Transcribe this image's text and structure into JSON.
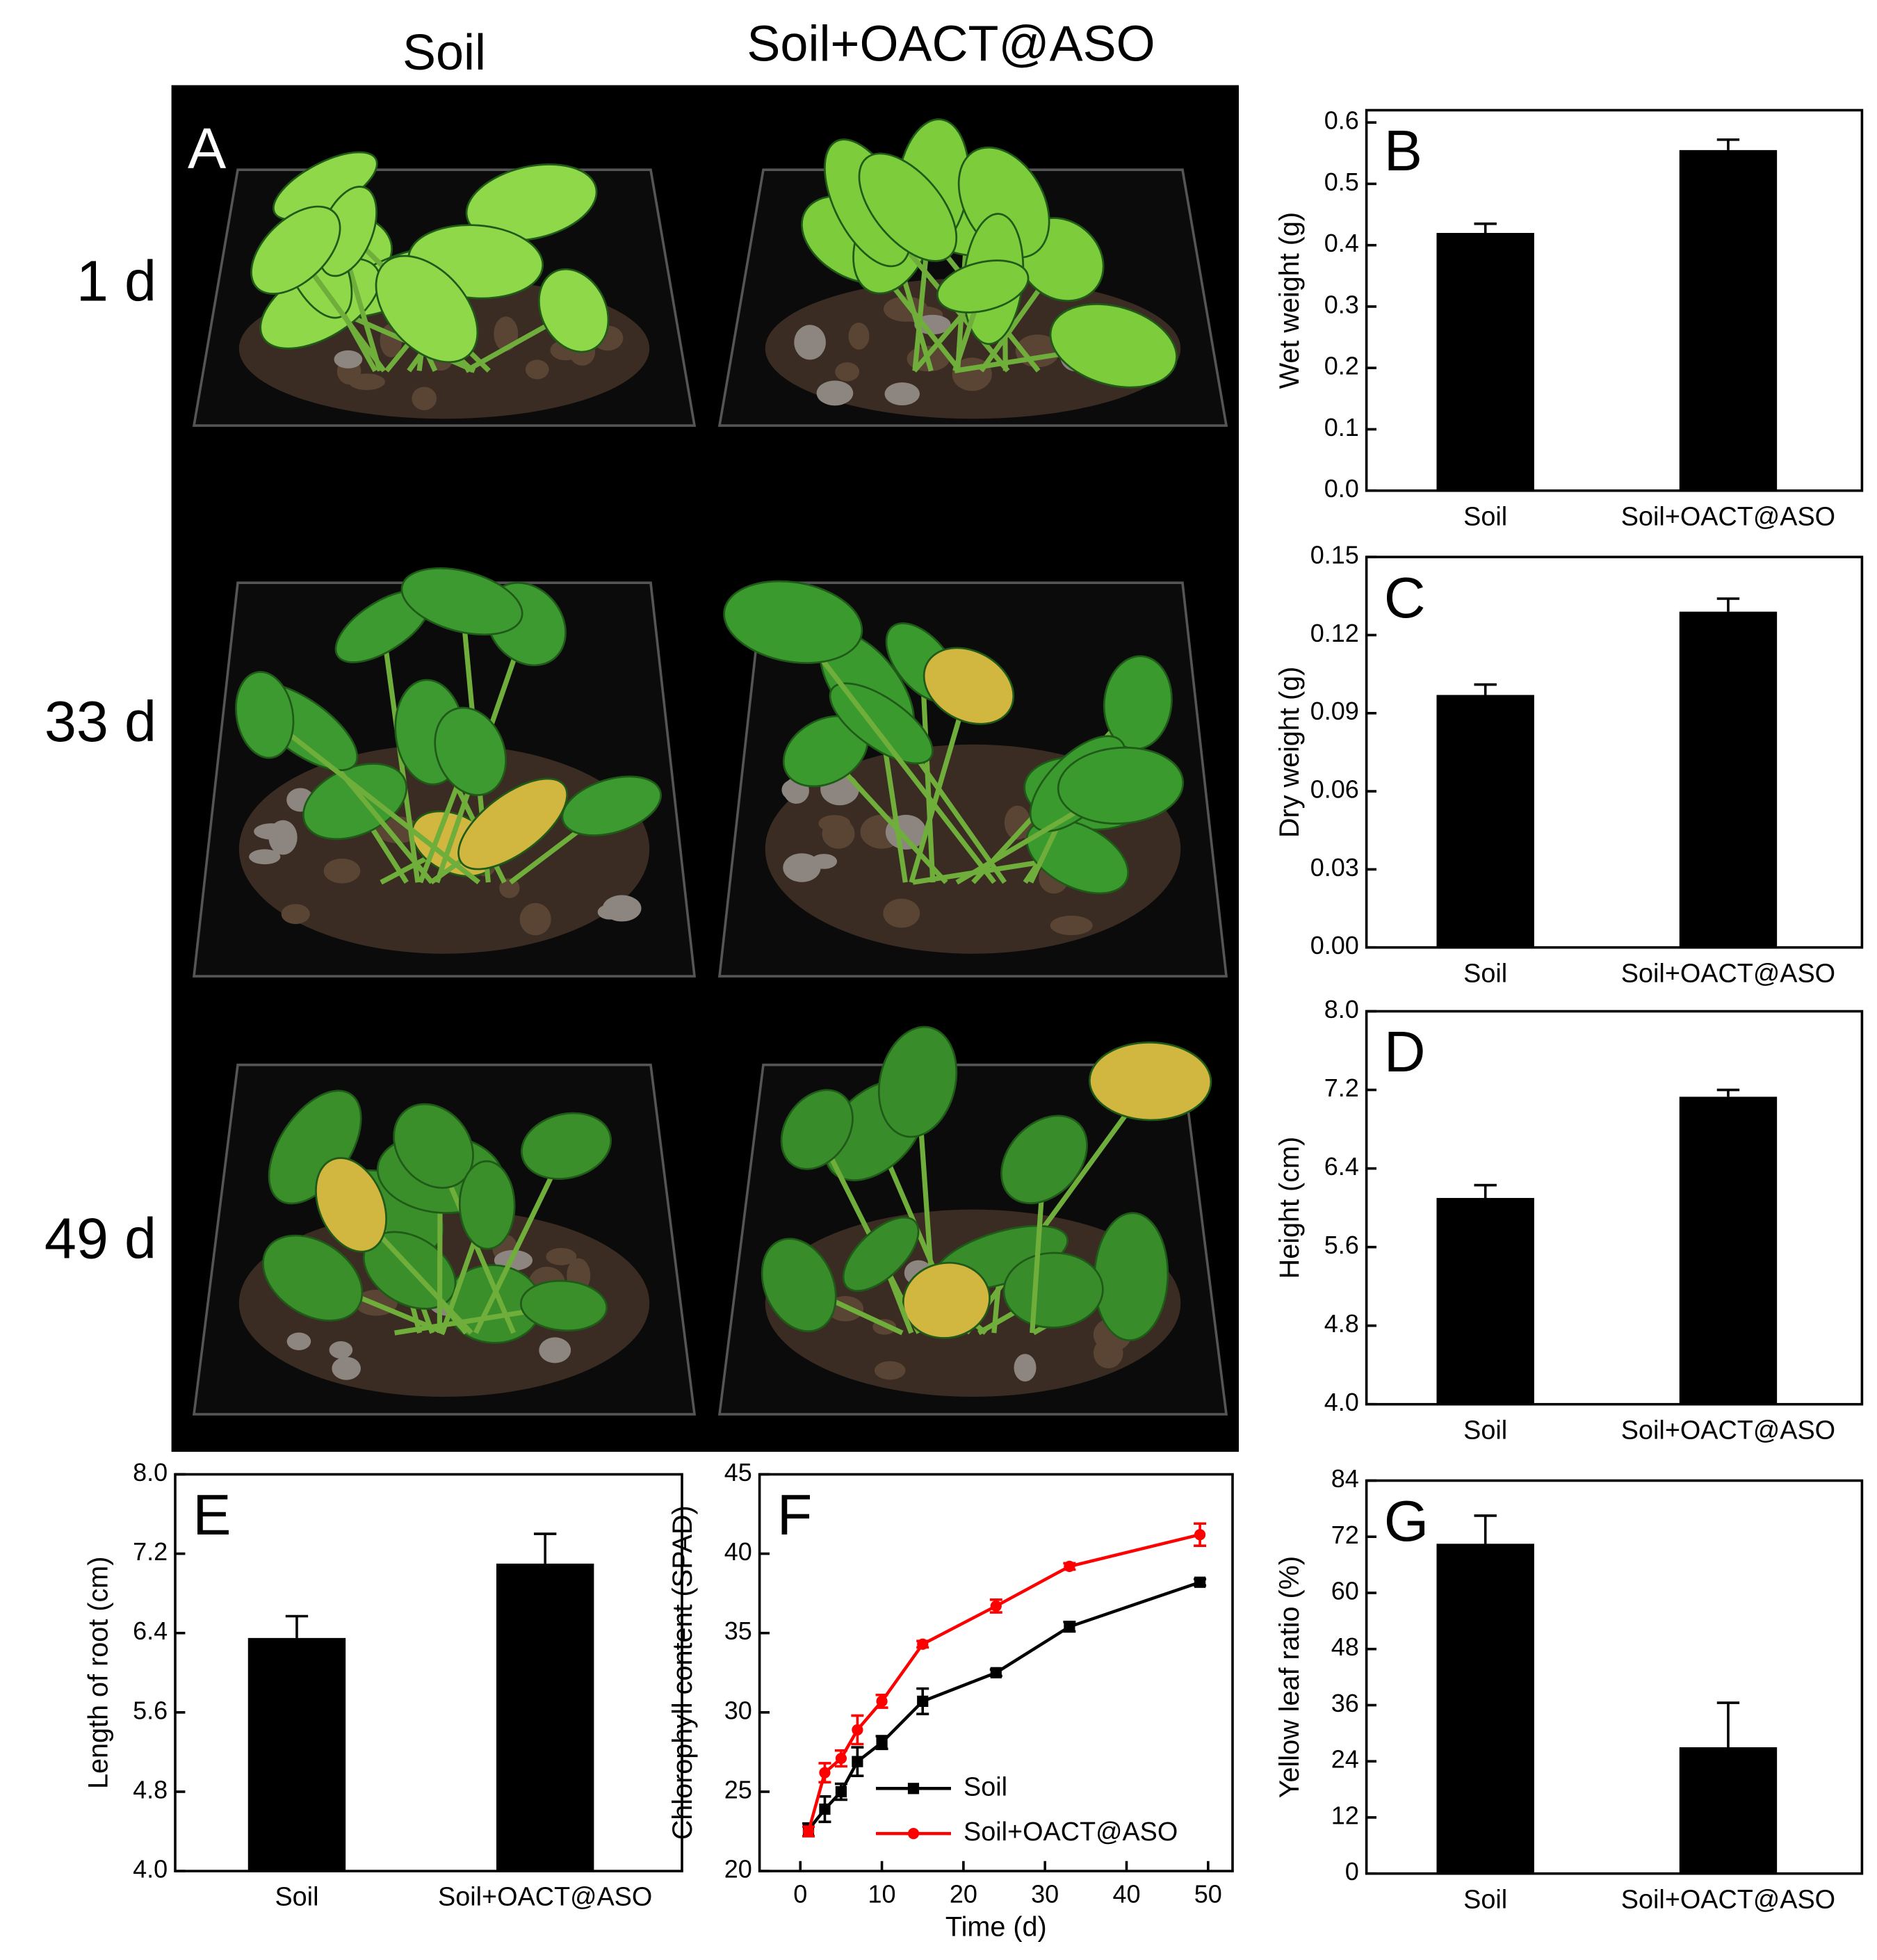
{
  "photo_panel": {
    "label": "A",
    "columns": [
      "Soil",
      "Soil+OACT@ASO"
    ],
    "rows": [
      "1 d",
      "33 d",
      "49 d"
    ]
  },
  "chart_data": [
    {
      "type": "bar",
      "panel_label": "B",
      "y_label": "Wet weight (g)",
      "categories": [
        "Soil",
        "Soil+OACT@ASO"
      ],
      "values": [
        0.42,
        0.555
      ],
      "errors": [
        0.015,
        0.017
      ],
      "color": "#000000",
      "ylim": [
        0,
        0.62
      ],
      "yticks": [
        {
          "value": 0,
          "label": "0.0"
        },
        0.1,
        0.2,
        0.3,
        0.4,
        0.5,
        0.6
      ]
    },
    {
      "type": "bar",
      "panel_label": "C",
      "y_label": "Dry weight (g)",
      "categories": [
        "Soil",
        "Soil+OACT@ASO"
      ],
      "values": [
        0.097,
        0.129
      ],
      "errors": [
        0.004,
        0.005
      ],
      "color": "#000000",
      "ylim": [
        0,
        0.15
      ],
      "yticks": [
        {
          "value": 0,
          "label": "0.00"
        },
        {
          "value": 0.03,
          "label": "0.03"
        },
        {
          "value": 0.06,
          "label": "0.06"
        },
        {
          "value": 0.09,
          "label": "0.09"
        },
        {
          "value": 0.12,
          "label": "0.12"
        },
        {
          "value": 0.15,
          "label": "0.15"
        }
      ]
    },
    {
      "type": "bar",
      "panel_label": "D",
      "y_label": "Height (cm)",
      "categories": [
        "Soil",
        "Soil+OACT@ASO"
      ],
      "values": [
        6.1,
        7.13
      ],
      "errors": [
        0.13,
        0.07
      ],
      "color": "#000000",
      "ylim": [
        4,
        8
      ],
      "yticks": [
        {
          "value": 4,
          "label": "4.0"
        },
        4.8,
        5.6,
        6.4,
        7.2,
        {
          "value": 8,
          "label": "8.0"
        }
      ]
    },
    {
      "type": "bar",
      "panel_label": "E",
      "y_label": "Length of root (cm)",
      "categories": [
        "Soil",
        "Soil+OACT@ASO"
      ],
      "values": [
        6.35,
        7.1
      ],
      "errors": [
        0.22,
        0.3
      ],
      "color": "#000000",
      "ylim": [
        4,
        8
      ],
      "yticks": [
        {
          "value": 4,
          "label": "4.0"
        },
        4.8,
        5.6,
        6.4,
        7.2,
        {
          "value": 8,
          "label": "8.0"
        }
      ]
    },
    {
      "type": "line",
      "panel_label": "F",
      "x_label": "Time (d)",
      "y_label": "Chlorophyll content (SPAD)",
      "x": [
        1,
        3,
        5,
        7,
        10,
        15,
        24,
        33,
        49
      ],
      "xlim": [
        -5,
        53
      ],
      "xticks": [
        0,
        10,
        20,
        30,
        40,
        50
      ],
      "ylim": [
        20,
        45
      ],
      "yticks": [
        20,
        25,
        30,
        35,
        40,
        45
      ],
      "legend": "lower right",
      "series": [
        {
          "name": "Soil",
          "color": "#000000",
          "marker": "square",
          "values": [
            22.6,
            23.9,
            25.0,
            26.9,
            28.1,
            30.7,
            32.5,
            35.4,
            38.2
          ],
          "errors": [
            0.4,
            0.8,
            0.5,
            0.9,
            0.4,
            0.8,
            0.2,
            0.3,
            0.2
          ]
        },
        {
          "name": "Soil+OACT@ASO",
          "color": "#ff0000",
          "marker": "circle",
          "values": [
            22.5,
            26.2,
            27.1,
            28.9,
            30.7,
            34.3,
            36.7,
            39.2,
            41.2
          ],
          "errors": [
            0.3,
            0.6,
            0.5,
            0.9,
            0.4,
            0.2,
            0.4,
            0.2,
            0.7
          ]
        }
      ]
    },
    {
      "type": "bar",
      "panel_label": "G",
      "y_label": "Yellow leaf ratio (%)",
      "categories": [
        "Soil",
        "Soil+OACT@ASO"
      ],
      "values": [
        70.5,
        27
      ],
      "errors": [
        6,
        9.5
      ],
      "color": "#000000",
      "ylim": [
        0,
        84
      ],
      "yticks": [
        0,
        12,
        24,
        36,
        48,
        60,
        72,
        84
      ]
    }
  ]
}
